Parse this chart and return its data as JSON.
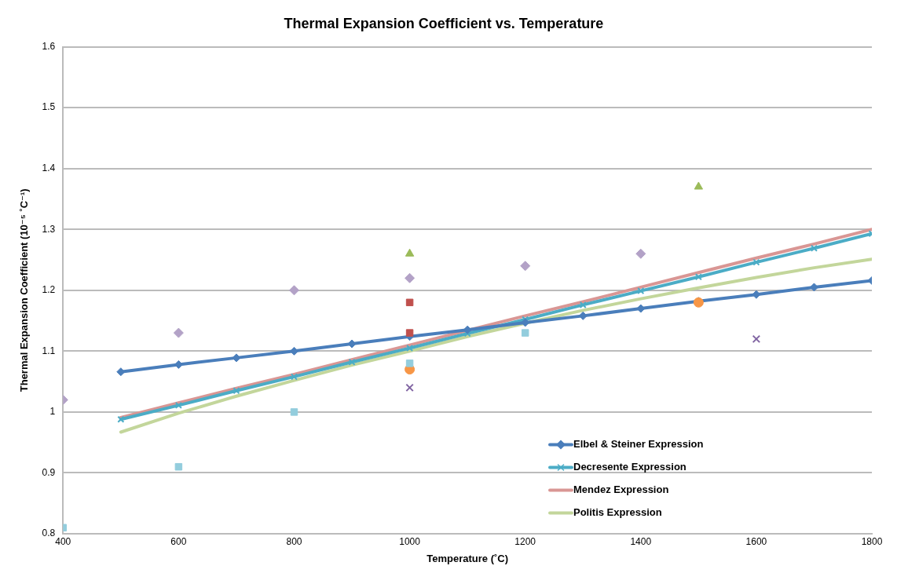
{
  "chart_data": {
    "type": "line",
    "title": "Thermal Expansion Coefficient vs. Temperature",
    "xlabel": "Temperature (˚C)",
    "ylabel": "Thermal Expansion Coefficient (10⁻⁵ ˚C⁻¹)",
    "xlim": [
      400,
      1800
    ],
    "xticks": [
      400,
      600,
      800,
      1000,
      1200,
      1400,
      1600,
      1800
    ],
    "ylim": [
      0.8,
      1.6
    ],
    "yticks": [
      0.8,
      0.9,
      1,
      1.1,
      1.2,
      1.3,
      1.4,
      1.5,
      1.6
    ],
    "grid": "y",
    "legend": "bottom right",
    "line_style": "solid",
    "series": [
      {
        "name": "Elbel & Steiner Expression",
        "color": "#4a7ebb",
        "marker": "diamond",
        "x": [
          500,
          600,
          700,
          800,
          900,
          1000,
          1100,
          1200,
          1300,
          1400,
          1500,
          1600,
          1700,
          1800
        ],
        "values": [
          1.066,
          1.078,
          1.089,
          1.1,
          1.112,
          1.124,
          1.135,
          1.147,
          1.158,
          1.17,
          1.182,
          1.193,
          1.205,
          1.216
        ]
      },
      {
        "name": "Decresente Expression",
        "color": "#4bacc6",
        "marker": "cross",
        "x": [
          500,
          600,
          700,
          800,
          900,
          1000,
          1100,
          1200,
          1300,
          1400,
          1500,
          1600,
          1700,
          1800
        ],
        "values": [
          0.988,
          1.011,
          1.035,
          1.058,
          1.082,
          1.105,
          1.129,
          1.152,
          1.176,
          1.199,
          1.222,
          1.246,
          1.269,
          1.293
        ]
      },
      {
        "name": "Mendez Expression",
        "color": "#d99694",
        "marker": "none",
        "x": [
          500,
          600,
          700,
          800,
          900,
          1000,
          1100,
          1200,
          1300,
          1400,
          1500,
          1600,
          1700,
          1800
        ],
        "values": [
          0.991,
          1.015,
          1.039,
          1.062,
          1.086,
          1.11,
          1.134,
          1.158,
          1.181,
          1.205,
          1.229,
          1.253,
          1.276,
          1.3
        ]
      },
      {
        "name": "Politis Expression",
        "color": "#c3d69b",
        "marker": "none",
        "x": [
          500,
          600,
          700,
          800,
          900,
          1000,
          1100,
          1200,
          1300,
          1400,
          1500,
          1600,
          1700,
          1800
        ],
        "values": [
          0.967,
          0.998,
          1.026,
          1.052,
          1.077,
          1.1,
          1.124,
          1.146,
          1.167,
          1.186,
          1.204,
          1.221,
          1.237,
          1.251
        ]
      },
      {
        "type": "scatter",
        "color": "#b3a2c7",
        "marker": "diamond",
        "x": [
          400,
          600,
          800,
          1000,
          1200,
          1400
        ],
        "values": [
          1.02,
          1.13,
          1.2,
          1.22,
          1.24,
          1.26
        ]
      },
      {
        "type": "scatter",
        "color": "#93cddd",
        "marker": "square",
        "x": [
          400,
          600,
          800,
          1000,
          1200
        ],
        "values": [
          0.81,
          0.91,
          1,
          1.08,
          1.13
        ]
      },
      {
        "type": "scatter",
        "color": "#c0504d",
        "marker": "square",
        "x": [
          1000,
          1000
        ],
        "values": [
          1.18,
          1.13
        ]
      },
      {
        "type": "scatter",
        "color": "#9bbb59",
        "marker": "triangle",
        "x": [
          1000,
          1500
        ],
        "values": [
          1.26,
          1.37
        ]
      },
      {
        "type": "scatter",
        "color": "#f79646",
        "marker": "circle",
        "x": [
          1000,
          1500
        ],
        "values": [
          1.07,
          1.18
        ]
      },
      {
        "type": "scatter",
        "color": "#8064a2",
        "marker": "cross",
        "x": [
          1000,
          1600
        ],
        "values": [
          1.04,
          1.12
        ]
      }
    ]
  }
}
